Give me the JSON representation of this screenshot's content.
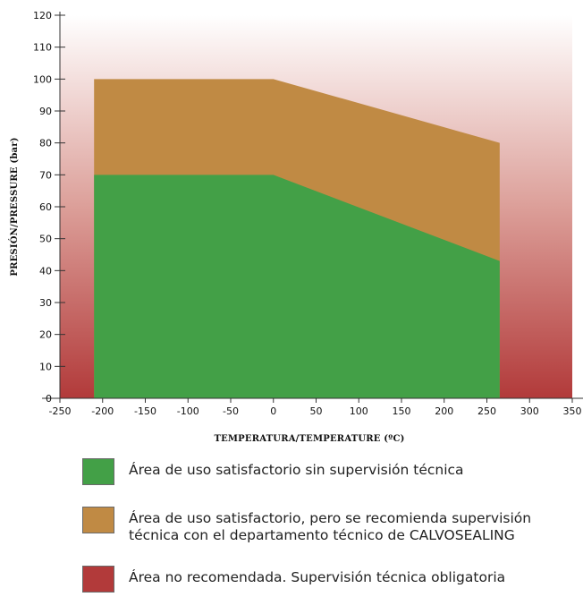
{
  "chart_data": {
    "type": "area",
    "xlabel": "TEMPERATURA/TEMPERATURE (ºC)",
    "ylabel": "PRESIÓN/PRESSURE (bar)",
    "xlim": [
      -250,
      350
    ],
    "ylim": [
      0,
      120
    ],
    "x_ticks": [
      -250,
      -200,
      -150,
      -100,
      -50,
      0,
      50,
      100,
      150,
      200,
      250,
      300,
      350
    ],
    "y_ticks": [
      0,
      10,
      20,
      30,
      40,
      50,
      60,
      70,
      80,
      90,
      100,
      110,
      120
    ],
    "grid": false,
    "background": "vertical gradient from white (top) to red (bottom) representing the not-recommended area",
    "series": [
      {
        "legend_key": "not_recommended",
        "color": "#b23a3a",
        "region": "entire plot area outside the other zones"
      },
      {
        "legend_key": "supervision",
        "color": "#c08a44",
        "x": [
          -210,
          0,
          265
        ],
        "y": [
          100,
          100,
          80
        ]
      },
      {
        "legend_key": "satisfactory",
        "color": "#43a047",
        "x": [
          -210,
          0,
          265
        ],
        "y": [
          70,
          70,
          43
        ]
      }
    ]
  },
  "legend": {
    "items": [
      {
        "key": "satisfactory",
        "color": "#43a047",
        "label": "Área de uso satisfactorio sin supervisión técnica"
      },
      {
        "key": "supervision",
        "color": "#c08a44",
        "label": "Área de uso satisfactorio, pero se recomienda supervisión técnica con el departamento técnico de CALVOSEALING"
      },
      {
        "key": "not_recommended",
        "color": "#b23a3a",
        "label": "Área no recomendada. Supervisión técnica obligatoria"
      }
    ]
  }
}
